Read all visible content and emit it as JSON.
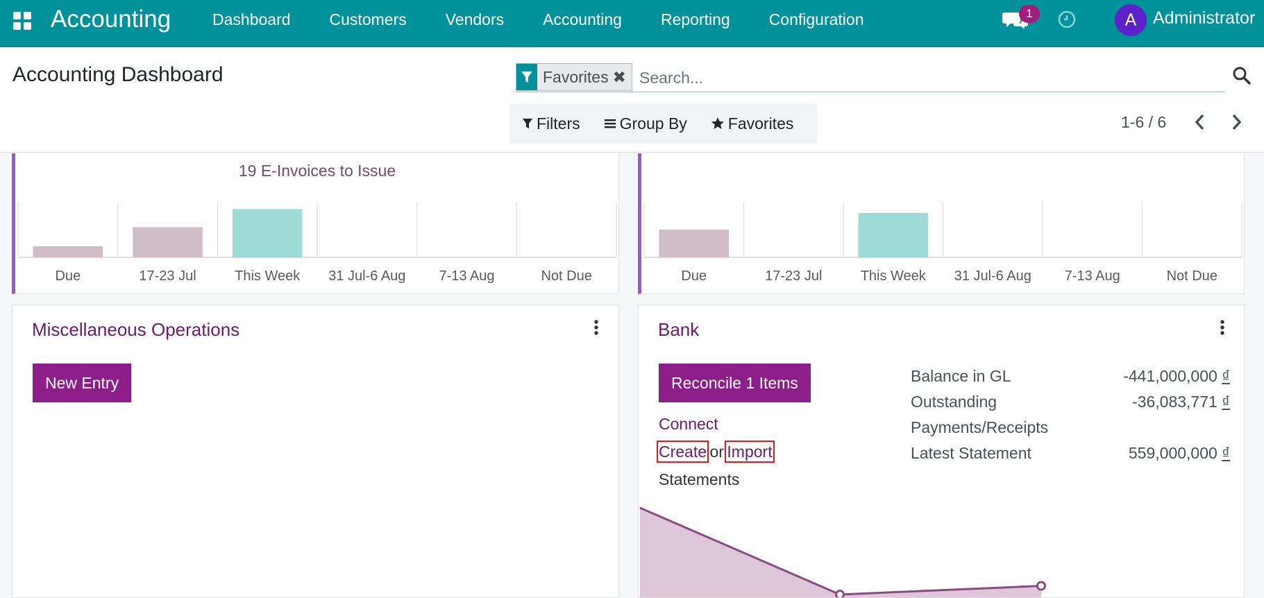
{
  "navbar": {
    "app_name": "Accounting",
    "menu": [
      "Dashboard",
      "Customers",
      "Vendors",
      "Accounting",
      "Reporting",
      "Configuration"
    ],
    "chat_count": "1",
    "avatar_letter": "A",
    "user_name": "Administrator",
    "icons": [
      "apps-grid-icon",
      "chat-icon",
      "clock-icon"
    ],
    "colors": {
      "bar": "#01919a",
      "badge": "#a51b7e",
      "avatar": "#5b22c9"
    }
  },
  "control_panel": {
    "title": "Accounting Dashboard",
    "facet": {
      "label": "Favorites",
      "remove": "✖",
      "icon": "filter-icon"
    },
    "search_placeholder": "Search...",
    "filters_label": "Filters",
    "group_by_label": "Group By",
    "favorites_label": "Favorites",
    "pager": "1-6 / 6"
  },
  "cards": {
    "top_left": {
      "link": "19 E-Invoices to Issue",
      "chart_data": {
        "type": "bar",
        "categories": [
          "Due",
          "17-23 Jul",
          "This Week",
          "31 Jul-6 Aug",
          "7-13 Aug",
          "Not Due"
        ],
        "values": [
          14,
          38,
          61,
          0,
          0,
          0
        ],
        "colors": [
          "#d1bdc8",
          "#d1bdc8",
          "#9edbd7",
          "#d1bdc8",
          "#d1bdc8",
          "#d1bdc8"
        ]
      }
    },
    "top_right": {
      "chart_data": {
        "type": "bar",
        "categories": [
          "Due",
          "17-23 Jul",
          "This Week",
          "31 Jul-6 Aug",
          "7-13 Aug",
          "Not Due"
        ],
        "values": [
          35,
          0,
          56,
          0,
          0,
          0
        ],
        "colors": [
          "#d1bdc8",
          "#d1bdc8",
          "#9edbd7",
          "#d1bdc8",
          "#d1bdc8",
          "#d1bdc8"
        ]
      }
    },
    "misc": {
      "title": "Miscellaneous Operations",
      "new_entry": "New Entry"
    },
    "bank": {
      "title": "Bank",
      "reconcile": "Reconcile 1 Items",
      "connect": "Connect",
      "create": "Create",
      "or": "or",
      "import": "Import",
      "statements": "Statements",
      "balance_label": "Balance in GL",
      "balance_value": "-441,000,000",
      "outstanding_label": "Outstanding Payments/Receipts",
      "outstanding_value": "-36,083,771",
      "latest_label": "Latest Statement",
      "latest_value": "559,000,000",
      "currency": "₫",
      "chart_data": {
        "type": "area",
        "values": [
          100,
          0,
          10
        ],
        "color": "#8a4a82",
        "fill": "#dcc6d8"
      }
    }
  }
}
